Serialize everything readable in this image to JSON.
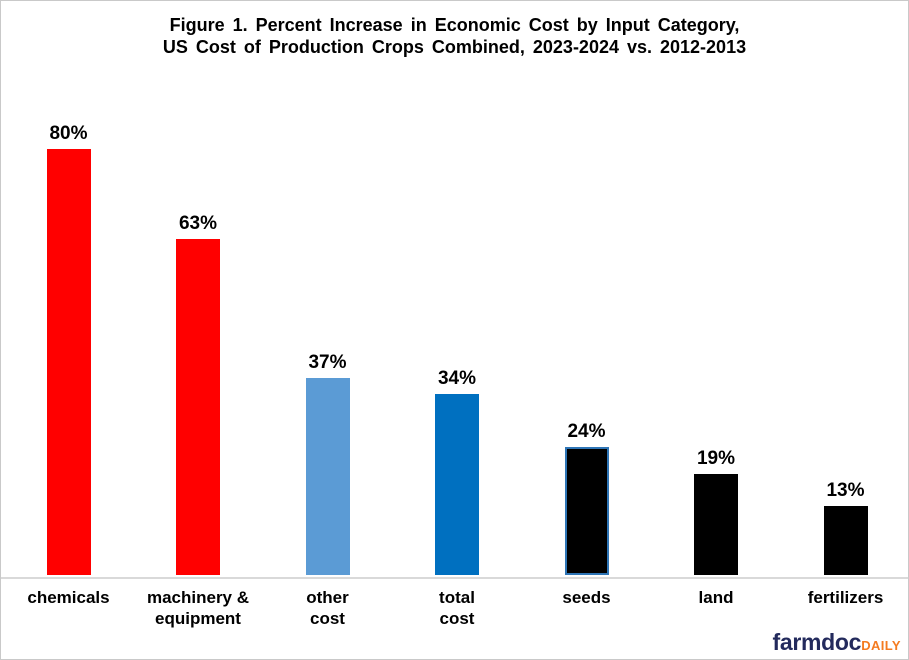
{
  "title": {
    "line1": "Figure 1.  Percent Increase in Economic Cost by Input Category,",
    "line2": "US Cost of Production Crops Combined,  2023-2024 vs. 2012-2013"
  },
  "chart_data": {
    "type": "bar",
    "title": "Figure 1. Percent Increase in Economic Cost by Input Category, US Cost of Production Crops Combined, 2023-2024 vs. 2012-2013",
    "categories": [
      "chemicals",
      "machinery & equipment",
      "other cost",
      "total cost",
      "seeds",
      "land",
      "fertilizers"
    ],
    "values": [
      80,
      63,
      37,
      34,
      24,
      19,
      13
    ],
    "value_labels": [
      "80%",
      "63%",
      "37%",
      "34%",
      "24%",
      "19%",
      "13%"
    ],
    "value_suffix": "%",
    "xlabel": "",
    "ylabel": "",
    "ylim": [
      0,
      85
    ],
    "grid": false,
    "legend": null,
    "axis_line_color": "#d9d9d9",
    "bars": [
      {
        "label_lines": [
          "chemicals"
        ],
        "value": 80,
        "display": "80%",
        "color": "#ff0000"
      },
      {
        "label_lines": [
          "machinery &",
          "equipment"
        ],
        "value": 63,
        "display": "63%",
        "color": "#ff0000"
      },
      {
        "label_lines": [
          "other",
          "cost"
        ],
        "value": 37,
        "display": "37%",
        "color": "#5b9bd5"
      },
      {
        "label_lines": [
          "total",
          "cost"
        ],
        "value": 34,
        "display": "34%",
        "color": "#0070c0"
      },
      {
        "label_lines": [
          "seeds"
        ],
        "value": 24,
        "display": "24%",
        "color": "#000000",
        "border_color": "#2e75b6"
      },
      {
        "label_lines": [
          "land"
        ],
        "value": 19,
        "display": "19%",
        "color": "#000000"
      },
      {
        "label_lines": [
          "fertilizers"
        ],
        "value": 13,
        "display": "13%",
        "color": "#000000"
      }
    ]
  },
  "logo": {
    "farmdoc_text": "farmdoc",
    "daily_text": "DAILY",
    "farmdoc_color": "#232a5c",
    "daily_color": "#f47b20"
  }
}
